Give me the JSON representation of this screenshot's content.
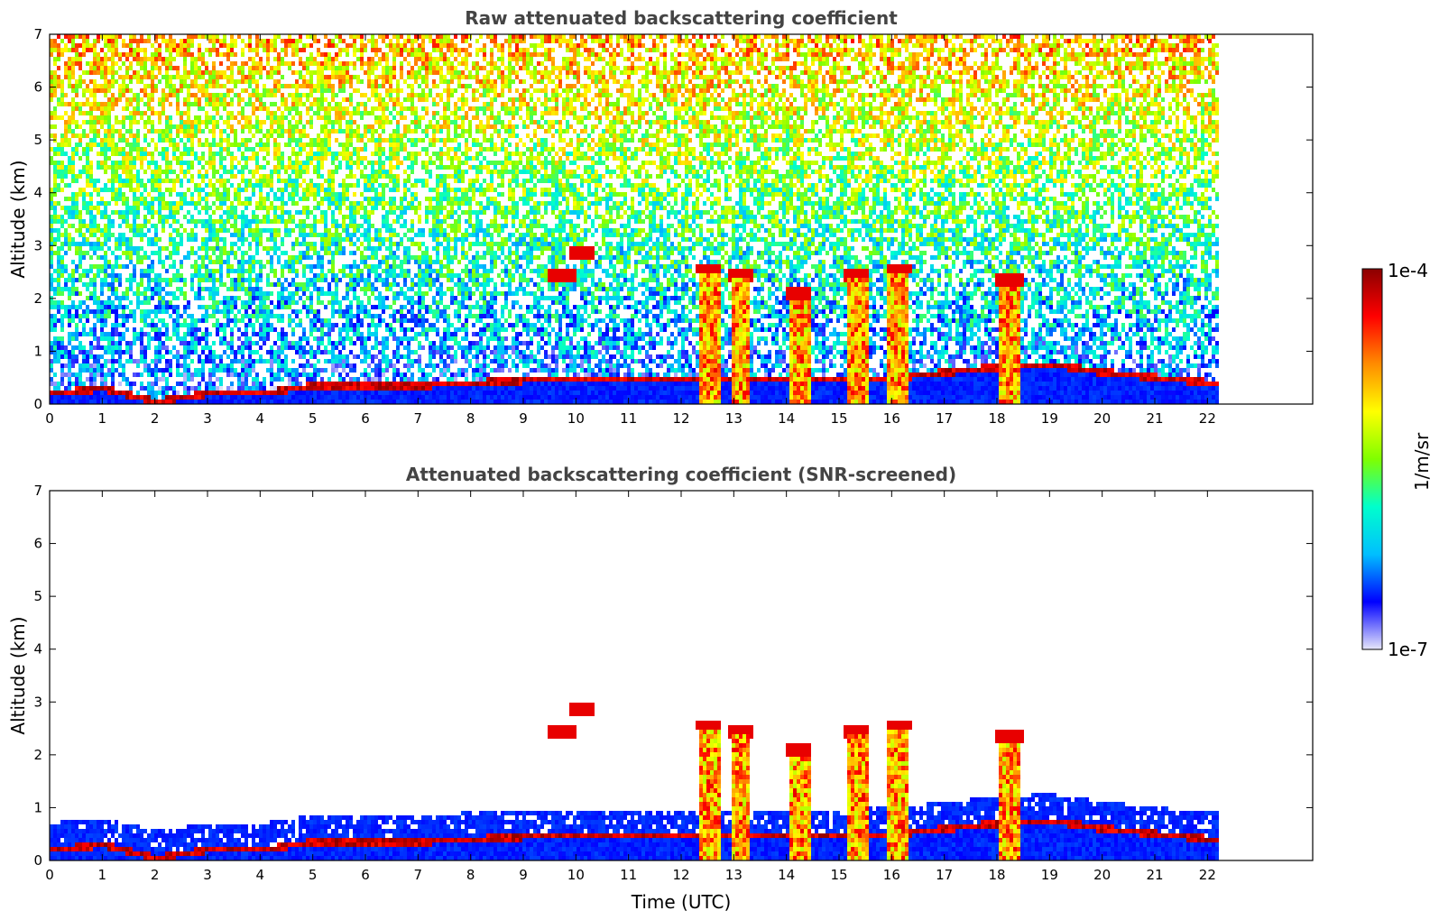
{
  "chart_data": [
    {
      "type": "heatmap",
      "title": "Raw attenuated backscattering coefficient",
      "xlabel": "",
      "ylabel": "Altitude (km)",
      "xlim": [
        0,
        24
      ],
      "ylim": [
        0,
        7
      ],
      "x_ticks": [
        "0",
        "1",
        "2",
        "3",
        "4",
        "5",
        "6",
        "7",
        "8",
        "9",
        "10",
        "11",
        "12",
        "13",
        "14",
        "15",
        "16",
        "17",
        "18",
        "19",
        "20",
        "21",
        "22"
      ],
      "y_ticks": [
        "0",
        "1",
        "2",
        "3",
        "4",
        "5",
        "6",
        "7"
      ],
      "data_extent_x": [
        0,
        22.2
      ],
      "grid": false,
      "features": [
        {
          "name": "boundary layer top",
          "x": [
            0,
            1,
            2,
            3,
            4,
            5,
            6,
            7,
            8,
            9,
            10,
            11,
            12,
            13,
            14,
            15,
            16,
            17,
            18,
            19,
            20,
            21,
            22
          ],
          "y": [
            0.3,
            0.4,
            0.15,
            0.3,
            0.3,
            0.45,
            0.45,
            0.45,
            0.5,
            0.55,
            0.55,
            0.55,
            0.55,
            0.55,
            0.55,
            0.55,
            0.6,
            0.7,
            0.8,
            0.85,
            0.7,
            0.6,
            0.5
          ]
        },
        {
          "name": "clouds 2-3 km",
          "x": [
            9.7,
            10.1,
            12.5,
            13.1,
            14.2,
            15.3,
            16.1,
            18.2
          ],
          "y": [
            2.5,
            2.9,
            2.6,
            2.5,
            2.1,
            2.5,
            2.6,
            2.4
          ]
        }
      ]
    },
    {
      "type": "heatmap",
      "title": "Attenuated backscattering coefficient (SNR-screened)",
      "xlabel": "Time (UTC)",
      "ylabel": "Altitude (km)",
      "xlim": [
        0,
        24
      ],
      "ylim": [
        0,
        7
      ],
      "x_ticks": [
        "0",
        "1",
        "2",
        "3",
        "4",
        "5",
        "6",
        "7",
        "8",
        "9",
        "10",
        "11",
        "12",
        "13",
        "14",
        "15",
        "16",
        "17",
        "18",
        "19",
        "20",
        "21",
        "22"
      ],
      "y_ticks": [
        "0",
        "1",
        "2",
        "3",
        "4",
        "5",
        "6",
        "7"
      ],
      "data_extent_x": [
        0,
        22.2
      ],
      "grid": false
    }
  ],
  "colorbar": {
    "label": "1/m/sr",
    "max_label": "1e-4",
    "min_label": "1e-7",
    "colormap": [
      "#e6e6fa",
      "#0000ff",
      "#00bfff",
      "#00ffcc",
      "#7fff00",
      "#ffff00",
      "#ff8c00",
      "#ff0000",
      "#8b0000"
    ]
  }
}
